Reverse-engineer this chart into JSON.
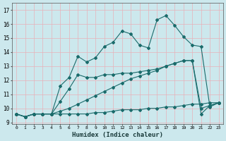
{
  "xlabel": "Humidex (Indice chaleur)",
  "background_color": "#cce8ed",
  "grid_color": "#b0d8e0",
  "line_color": "#1a6b6b",
  "xlim": [
    -0.5,
    23.5
  ],
  "ylim": [
    8.9,
    17.5
  ],
  "xticks": [
    0,
    1,
    2,
    3,
    4,
    5,
    6,
    7,
    8,
    9,
    10,
    11,
    12,
    13,
    14,
    15,
    16,
    17,
    18,
    19,
    20,
    21,
    22,
    23
  ],
  "yticks": [
    9,
    10,
    11,
    12,
    13,
    14,
    15,
    16,
    17
  ],
  "series1_x": [
    0,
    1,
    2,
    3,
    4,
    5,
    6,
    7,
    8,
    9,
    10,
    11,
    12,
    13,
    14,
    15,
    16,
    17,
    18,
    19,
    20,
    21,
    22,
    23
  ],
  "series1_y": [
    9.6,
    9.4,
    9.6,
    9.6,
    9.6,
    9.6,
    9.6,
    9.6,
    9.6,
    9.7,
    9.7,
    9.8,
    9.9,
    9.9,
    9.9,
    10.0,
    10.0,
    10.1,
    10.1,
    10.2,
    10.3,
    10.3,
    10.4,
    10.4
  ],
  "series2_x": [
    0,
    1,
    2,
    3,
    4,
    5,
    6,
    7,
    8,
    9,
    10,
    11,
    12,
    13,
    14,
    15,
    16,
    17,
    18,
    19,
    20,
    21,
    22,
    23
  ],
  "series2_y": [
    9.6,
    9.4,
    9.6,
    9.6,
    9.6,
    9.8,
    10.0,
    10.3,
    10.6,
    10.9,
    11.2,
    11.5,
    11.8,
    12.1,
    12.3,
    12.5,
    12.7,
    13.0,
    13.2,
    13.4,
    13.4,
    10.0,
    10.2,
    10.4
  ],
  "series3_x": [
    0,
    1,
    2,
    3,
    4,
    5,
    6,
    7,
    8,
    9,
    10,
    11,
    12,
    13,
    14,
    15,
    16,
    17,
    18,
    19,
    20,
    21,
    22,
    23
  ],
  "series3_y": [
    9.6,
    9.4,
    9.6,
    9.6,
    9.6,
    10.5,
    11.4,
    12.4,
    12.2,
    12.2,
    12.4,
    12.4,
    12.5,
    12.5,
    12.6,
    12.7,
    12.8,
    13.0,
    13.2,
    13.4,
    13.4,
    9.6,
    10.2,
    10.4
  ],
  "series4_x": [
    0,
    1,
    2,
    3,
    4,
    5,
    6,
    7,
    8,
    9,
    10,
    11,
    12,
    13,
    14,
    15,
    16,
    17,
    18,
    19,
    20,
    21,
    22,
    23
  ],
  "series4_y": [
    9.6,
    9.4,
    9.6,
    9.6,
    9.6,
    11.6,
    12.2,
    13.7,
    13.3,
    13.6,
    14.4,
    14.7,
    15.5,
    15.3,
    14.5,
    14.3,
    16.3,
    16.6,
    15.9,
    15.1,
    14.5,
    14.4,
    10.1,
    10.4
  ]
}
